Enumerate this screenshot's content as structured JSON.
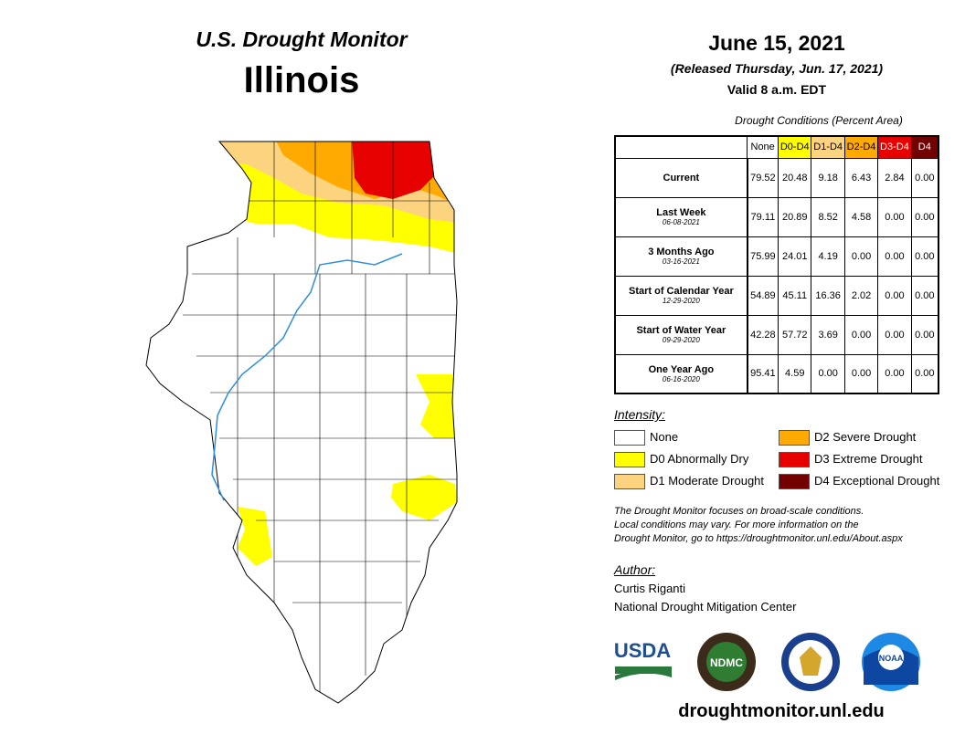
{
  "header": {
    "title": "U.S. Drought Monitor",
    "state": "Illinois",
    "date": "June 15, 2021",
    "released": "(Released Thursday, Jun. 17, 2021)",
    "valid": "Valid 8 a.m. EDT"
  },
  "table": {
    "caption": "Drought Conditions (Percent Area)",
    "columns": [
      {
        "label": "None",
        "color": "#ffffff",
        "text": "#000000"
      },
      {
        "label": "D0-D4",
        "color": "#ffff00",
        "text": "#000000"
      },
      {
        "label": "D1-D4",
        "color": "#fcd37f",
        "text": "#000000"
      },
      {
        "label": "D2-D4",
        "color": "#ffaa00",
        "text": "#000000"
      },
      {
        "label": "D3-D4",
        "color": "#e60000",
        "text": "#ffffff"
      },
      {
        "label": "D4",
        "color": "#730000",
        "text": "#ffffff"
      }
    ],
    "rows": [
      {
        "label": "Current",
        "values": [
          "79.52",
          "20.48",
          "9.18",
          "6.43",
          "2.84",
          "0.00"
        ]
      },
      {
        "label": "Last Week",
        "date": "06-08-2021",
        "values": [
          "79.11",
          "20.89",
          "8.52",
          "4.58",
          "0.00",
          "0.00"
        ]
      },
      {
        "label": "3 Months Ago",
        "date": "03-16-2021",
        "values": [
          "75.99",
          "24.01",
          "4.19",
          "0.00",
          "0.00",
          "0.00"
        ]
      },
      {
        "label": "Start of Calendar Year",
        "date": "12-29-2020",
        "values": [
          "54.89",
          "45.11",
          "16.36",
          "2.02",
          "0.00",
          "0.00"
        ]
      },
      {
        "label": "Start of Water Year",
        "date": "09-29-2020",
        "values": [
          "42.28",
          "57.72",
          "3.69",
          "0.00",
          "0.00",
          "0.00"
        ]
      },
      {
        "label": "One Year Ago",
        "date": "06-16-2020",
        "values": [
          "95.41",
          "4.59",
          "0.00",
          "0.00",
          "0.00",
          "0.00"
        ]
      }
    ]
  },
  "legend": {
    "title": "Intensity:",
    "items": [
      {
        "label": "None",
        "color": "#ffffff"
      },
      {
        "label": "D0 Abnormally Dry",
        "color": "#ffff00"
      },
      {
        "label": "D1 Moderate Drought",
        "color": "#fcd37f"
      },
      {
        "label": "D2 Severe Drought",
        "color": "#ffaa00"
      },
      {
        "label": "D3 Extreme Drought",
        "color": "#e60000"
      },
      {
        "label": "D4 Exceptional Drought",
        "color": "#730000"
      }
    ]
  },
  "note": [
    "The Drought Monitor focuses on broad-scale conditions.",
    "Local conditions may vary. For more information on the",
    "Drought Monitor, go to https://droughtmonitor.unl.edu/About.aspx"
  ],
  "author": {
    "heading": "Author:",
    "name": "Curtis Riganti",
    "org": "National Drought Mitigation Center"
  },
  "logos": [
    "USDA",
    "NDMC",
    "NOAA"
  ],
  "url": "droughtmonitor.unl.edu"
}
